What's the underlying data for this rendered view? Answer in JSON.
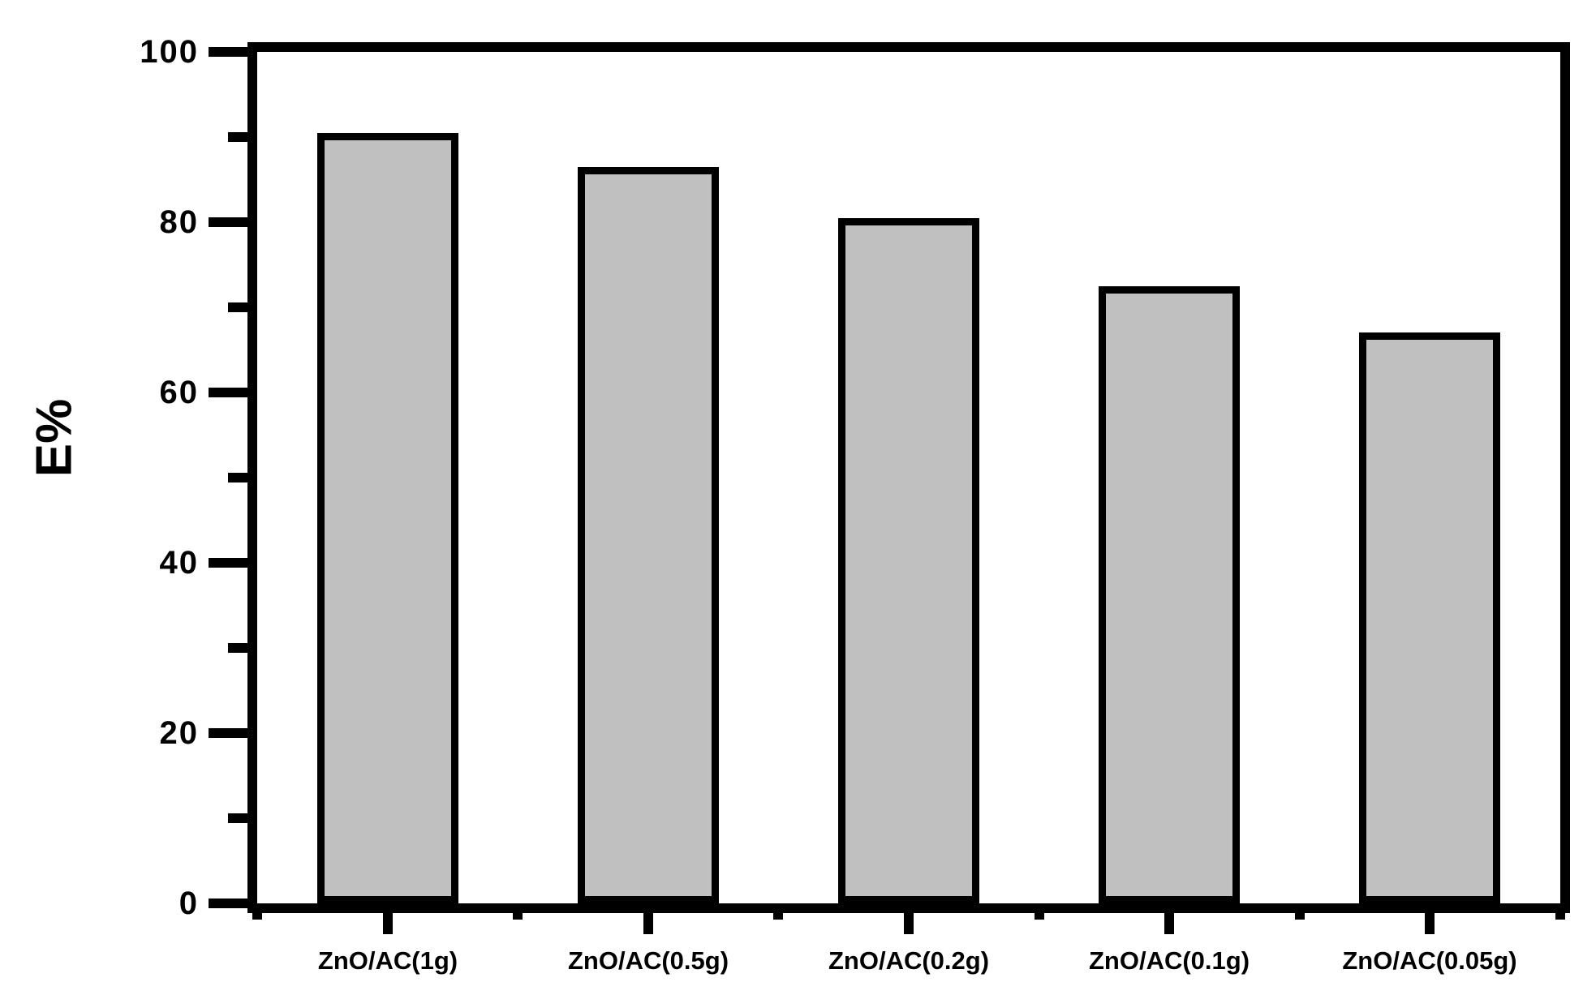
{
  "chart_data": {
    "type": "bar",
    "title": "",
    "xlabel": "",
    "ylabel": "E%",
    "categories": [
      "ZnO/AC(1g)",
      "ZnO/AC(0.5g)",
      "ZnO/AC(0.2g)",
      "ZnO/AC(0.1g)",
      "ZnO/AC(0.05g)"
    ],
    "values": [
      90.5,
      86.5,
      80.5,
      72.5,
      67
    ],
    "ylim": [
      0,
      100
    ],
    "y_major_ticks": [
      0,
      20,
      40,
      60,
      80,
      100
    ],
    "y_minor_ticks": [
      10,
      30,
      50,
      70,
      90
    ],
    "grid": false,
    "legend_position": "none",
    "colors": {
      "bar_fill": "#c0c0c0",
      "bar_border": "#000000",
      "axis": "#000000",
      "text": "#000000",
      "background": "#ffffff"
    }
  }
}
